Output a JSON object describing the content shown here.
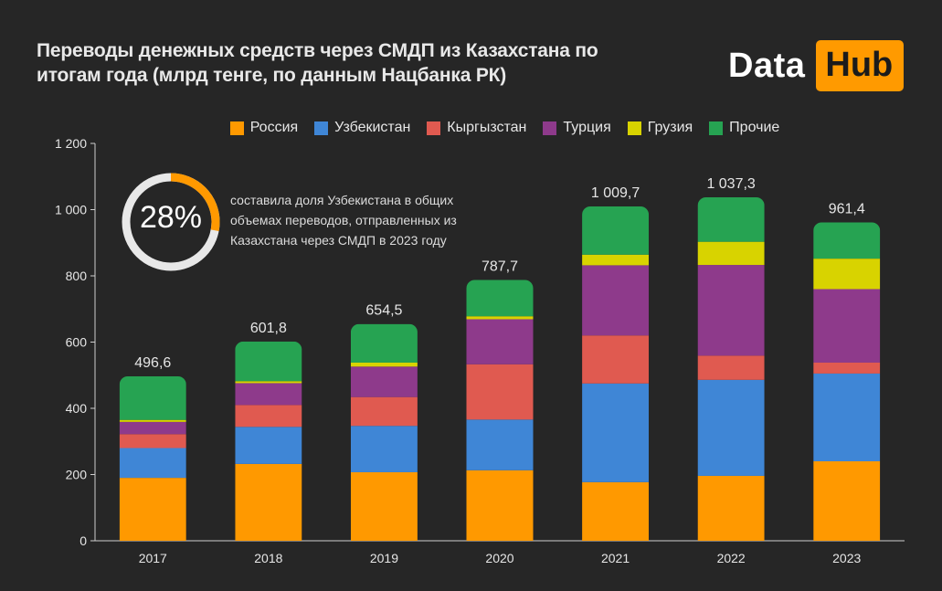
{
  "title": "Переводы денежных средств через СМДП из Казахстана по итогам года  (млрд тенге, по данным Нацбанка  РК)",
  "logo": {
    "part1": "Data",
    "part2": "Hub"
  },
  "callout": {
    "percent_label": "28%",
    "fraction": 0.28,
    "text": "составила доля Узбекистана в общих объемах переводов, отправленных из Казахстана через СМДП в 2023 году"
  },
  "colors": {
    "background": "#262626",
    "russia": "#ff9900",
    "uzbekistan": "#3f86d6",
    "kyrgyzstan": "#e05a50",
    "turkey": "#8e3a8b",
    "georgia": "#d8d300",
    "other": "#26a352",
    "axis": "#cfcfcf",
    "ring_track": "#e8e8e8",
    "ring_fill": "#ff9900"
  },
  "chart_data": {
    "type": "bar",
    "stacked": true,
    "categories": [
      "2017",
      "2018",
      "2019",
      "2020",
      "2021",
      "2022",
      "2023"
    ],
    "totals_labels": [
      "496,6",
      "601,8",
      "654,5",
      "787,7",
      "1 009,7",
      "1 037,3",
      "961,4"
    ],
    "ylim": [
      0,
      1200
    ],
    "y_ticks": [
      0,
      200,
      400,
      600,
      800,
      1000,
      1200
    ],
    "y_tick_labels": [
      "0",
      "200",
      "400",
      "600",
      "800",
      "1 000",
      "1 200"
    ],
    "legend_position": "top",
    "grid": false,
    "series": [
      {
        "name": "Россия",
        "color_key": "russia",
        "values": [
          190,
          232,
          207,
          213,
          177,
          196,
          240
        ]
      },
      {
        "name": "Узбекистан",
        "color_key": "uzbekistan",
        "values": [
          90,
          112,
          140,
          153,
          298,
          290,
          265
        ]
      },
      {
        "name": "Кыргызстан",
        "color_key": "kyrgyzstan",
        "values": [
          42,
          66,
          87,
          167,
          145,
          73,
          33
        ]
      },
      {
        "name": "Турция",
        "color_key": "turkey",
        "values": [
          37,
          66,
          92,
          136,
          212,
          274,
          222
        ]
      },
      {
        "name": "Грузия",
        "color_key": "georgia",
        "values": [
          6,
          6,
          12,
          9,
          32,
          70,
          92
        ]
      },
      {
        "name": "Прочие",
        "color_key": "other",
        "values": [
          131.6,
          119.8,
          116.5,
          109.7,
          145.7,
          134.3,
          109.4
        ]
      }
    ]
  }
}
